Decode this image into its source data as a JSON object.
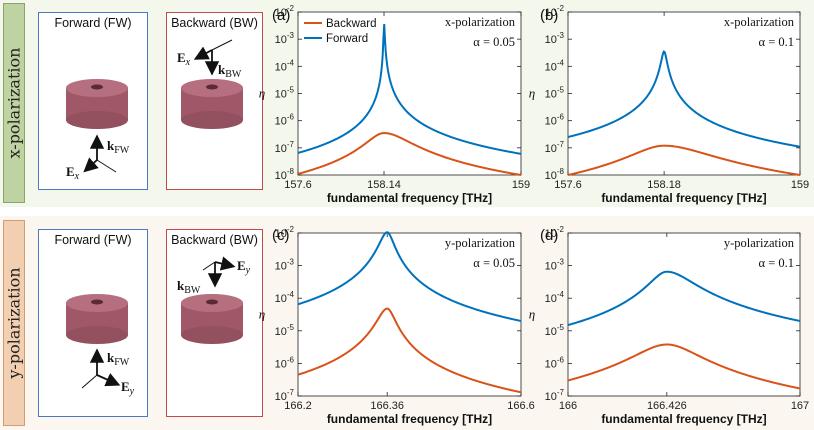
{
  "rows": {
    "x": {
      "label": "x-polarization"
    },
    "y": {
      "label": "y-polarization"
    }
  },
  "diagrams": [
    {
      "title": "Forward (FW)",
      "k_label": "k",
      "k_sub": "FW",
      "e_label": "E",
      "e_sub": "x"
    },
    {
      "title": "Backward (BW)",
      "k_label": "k",
      "k_sub": "BW",
      "e_label": "E",
      "e_sub": "x"
    },
    {
      "title": "Forward (FW)",
      "k_label": "k",
      "k_sub": "FW",
      "e_label": "E",
      "e_sub": "y"
    },
    {
      "title": "Backward (BW)",
      "k_label": "k",
      "k_sub": "BW",
      "e_label": "E",
      "e_sub": "y"
    }
  ],
  "colors": {
    "forward": "#0072bd",
    "backward": "#d95319",
    "cylinder": "#a35a6a",
    "cylinder_top": "#b46b7b"
  },
  "chart_data": [
    {
      "panel": "(a)",
      "type": "line",
      "polarization": "x-polarization",
      "alpha": "α = 0.05",
      "xlabel": "fundamental frequency [THz]",
      "ylabel": "η",
      "yscale": "log",
      "xlim": [
        157.6,
        159
      ],
      "ylim": [
        1e-08,
        0.01
      ],
      "xticks": [
        "157.6",
        "158.14",
        "159"
      ],
      "yticks": [
        "10^-8",
        "10^-7",
        "10^-6",
        "10^-5",
        "10^-4",
        "10^-3",
        "10^-2"
      ],
      "legend": [
        "Backward",
        "Forward"
      ],
      "series": [
        {
          "name": "Forward",
          "peak_x": 158.14,
          "peak_y": 0.0042,
          "edge_left": 6.5e-08,
          "edge_right": 6e-08
        },
        {
          "name": "Backward",
          "peak_x": 158.14,
          "peak_y": 3.5e-07,
          "edge_left": 1.1e-08,
          "edge_right": 1e-08
        }
      ]
    },
    {
      "panel": "(b)",
      "type": "line",
      "polarization": "x-polarization",
      "alpha": "α = 0.1",
      "xlabel": "fundamental frequency [THz]",
      "ylabel": "η",
      "yscale": "log",
      "xlim": [
        157.6,
        159
      ],
      "ylim": [
        1e-08,
        0.01
      ],
      "xticks": [
        "157.6",
        "158.18",
        "159"
      ],
      "yticks": [
        "10^-8",
        "10^-7",
        "10^-6",
        "10^-5",
        "10^-4",
        "10^-3",
        "10^-2"
      ],
      "series": [
        {
          "name": "Forward",
          "peak_x": 158.18,
          "peak_y": 0.00035,
          "edge_left": 2.5e-07,
          "edge_right": 1.1e-07
        },
        {
          "name": "Backward",
          "peak_x": 158.18,
          "peak_y": 1.2e-07,
          "edge_left": 1e-08,
          "edge_right": 1e-08
        }
      ]
    },
    {
      "panel": "(c)",
      "type": "line",
      "polarization": "y-polarization",
      "alpha": "α = 0.05",
      "xlabel": "fundamental frequency [THz]",
      "ylabel": "η",
      "yscale": "log",
      "xlim": [
        166.2,
        166.6
      ],
      "ylim": [
        1e-07,
        0.01
      ],
      "xticks": [
        "166.2",
        "166.36",
        "166.6"
      ],
      "yticks": [
        "10^-7",
        "10^-6",
        "10^-5",
        "10^-4",
        "10^-3",
        "10^-2"
      ],
      "series": [
        {
          "name": "Forward",
          "peak_x": 166.36,
          "peak_y": 0.0105,
          "edge_left": 6.5e-05,
          "edge_right": 2e-05
        },
        {
          "name": "Backward",
          "peak_x": 166.36,
          "peak_y": 4.8e-05,
          "edge_left": 4.5e-07,
          "edge_right": 1.3e-07
        }
      ]
    },
    {
      "panel": "(d)",
      "type": "line",
      "polarization": "y-polarization",
      "alpha": "α = 0.1",
      "xlabel": "fundamental frequency [THz]",
      "ylabel": "η",
      "yscale": "log",
      "xlim": [
        166,
        167
      ],
      "ylim": [
        1e-07,
        0.01
      ],
      "xticks": [
        "166",
        "166.426",
        "167"
      ],
      "yticks": [
        "10^-7",
        "10^-6",
        "10^-5",
        "10^-4",
        "10^-3",
        "10^-2"
      ],
      "series": [
        {
          "name": "Forward",
          "peak_x": 166.426,
          "peak_y": 0.00065,
          "edge_left": 1.5e-05,
          "edge_right": 2e-05
        },
        {
          "name": "Backward",
          "peak_x": 166.426,
          "peak_y": 3.8e-06,
          "edge_left": 3e-07,
          "edge_right": 1.7e-07
        }
      ]
    }
  ]
}
